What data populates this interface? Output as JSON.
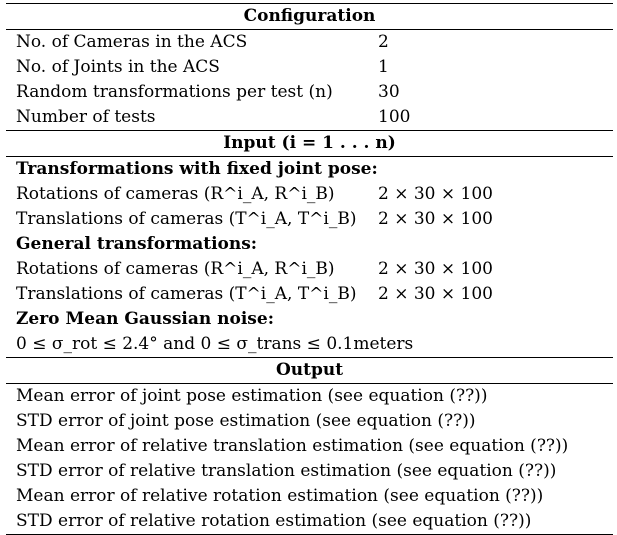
{
  "configuration": {
    "title": "Configuration",
    "rows": [
      {
        "label": "No. of Cameras in the ACS",
        "value": "2"
      },
      {
        "label": "No. of Joints in the ACS",
        "value": "1"
      },
      {
        "label": "Random transformations per test (n)",
        "value": "30"
      },
      {
        "label": "Number of tests",
        "value": "100"
      }
    ]
  },
  "input": {
    "title": "Input (i = 1 . . . n)",
    "fixed_heading": "Transformations with fixed joint pose:",
    "fixed_rows": [
      {
        "label": "Rotations of cameras (R^i_A, R^i_B)",
        "value": "2 × 30 × 100"
      },
      {
        "label": "Translations of cameras (T^i_A, T^i_B)",
        "value": "2 × 30 × 100"
      }
    ],
    "general_heading": "General transformations:",
    "general_rows": [
      {
        "label": "Rotations of cameras (R^i_A, R^i_B)",
        "value": "2 × 30 × 100"
      },
      {
        "label": "Translations of cameras (T^i_A, T^i_B)",
        "value": "2 × 30 × 100"
      }
    ],
    "noise_heading": "Zero Mean Gaussian noise:",
    "noise_text": "0 ≤ σ_rot ≤ 2.4° and 0 ≤ σ_trans ≤ 0.1meters"
  },
  "output": {
    "title": "Output",
    "rows": [
      "Mean error of joint pose estimation (see equation (??))",
      "STD error of joint pose estimation (see equation (??))",
      "Mean error of relative translation estimation (see equation (??))",
      "STD error of relative translation estimation (see equation (??))",
      "Mean error of relative rotation estimation (see equation (??))",
      "STD error of relative rotation estimation (see equation (??))"
    ]
  }
}
